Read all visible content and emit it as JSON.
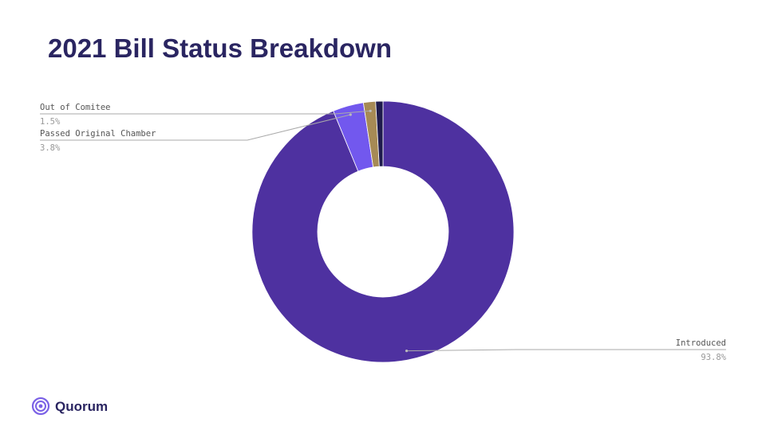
{
  "chart_data": {
    "type": "donut",
    "title": "2021 Bill Status Breakdown",
    "categories": [
      "Introduced",
      "Passed Original Chamber",
      "Out of Comitee",
      null
    ],
    "values": [
      93.8,
      3.8,
      1.5,
      0.9
    ],
    "value_labels": [
      "93.8%",
      "3.8%",
      "1.5%",
      null
    ],
    "colors": [
      "#4e31a0",
      "#7258ee",
      "#a68a55",
      "#1f1b4d"
    ]
  },
  "brand": "Quorum"
}
